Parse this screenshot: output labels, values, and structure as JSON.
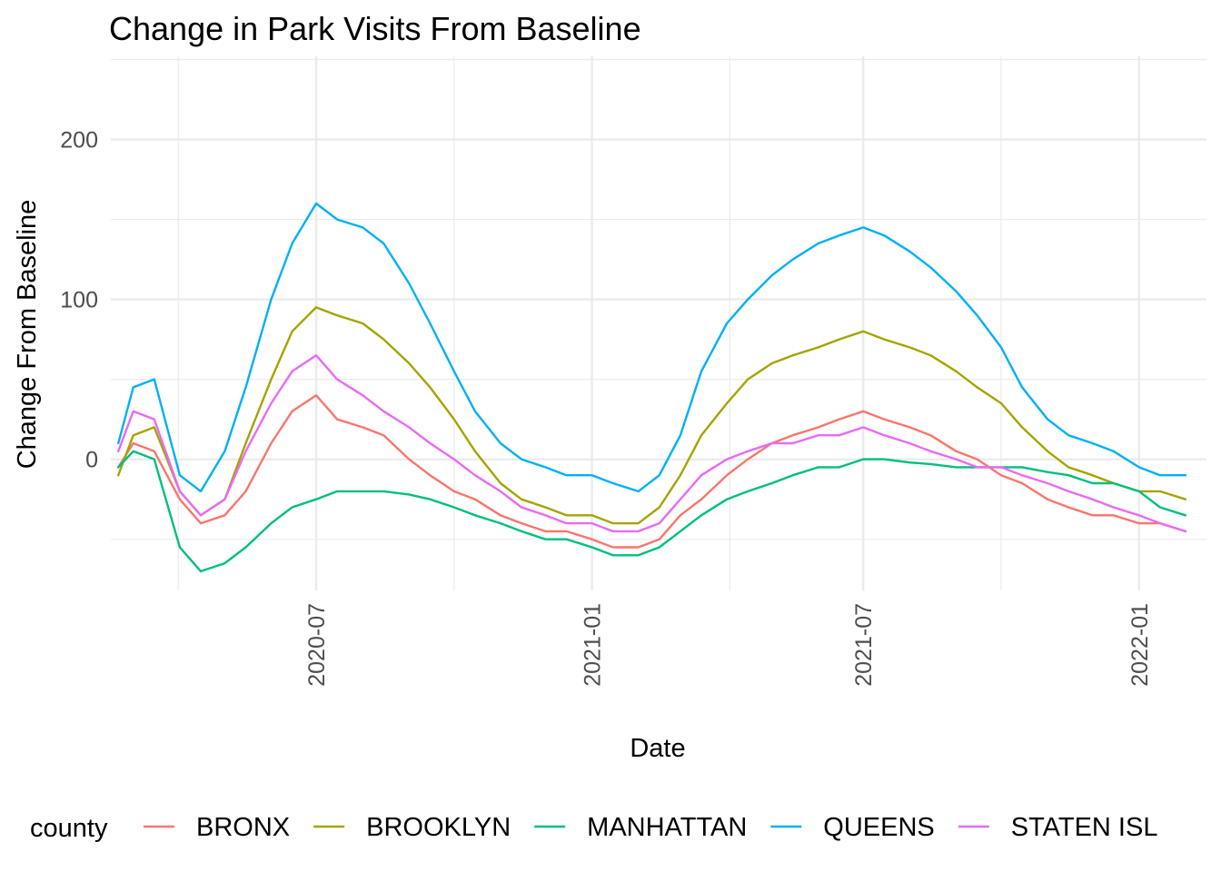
{
  "chart_data": {
    "type": "line",
    "title": "Change in Park Visits From Baseline",
    "xlabel": "Date",
    "ylabel": "Change From Baseline",
    "x_range": [
      "2020-02-15",
      "2022-02-15"
    ],
    "ylim": [
      -82,
      252
    ],
    "y_ticks": [
      0,
      100,
      200
    ],
    "x_ticks": [
      "2020-07-01",
      "2021-01-01",
      "2021-07-01",
      "2022-01-01"
    ],
    "x_tick_labels": [
      "2020-07",
      "2021-01",
      "2021-07",
      "2022-01"
    ],
    "grid": true,
    "legend": {
      "title": "county",
      "position": "bottom"
    },
    "series": [
      {
        "name": "BRONX",
        "color": "#F8766D",
        "x": [
          "2020-02-20",
          "2020-03-01",
          "2020-03-15",
          "2020-04-01",
          "2020-04-15",
          "2020-05-01",
          "2020-05-15",
          "2020-06-01",
          "2020-06-15",
          "2020-07-01",
          "2020-07-15",
          "2020-08-01",
          "2020-08-15",
          "2020-09-01",
          "2020-09-15",
          "2020-10-01",
          "2020-10-15",
          "2020-11-01",
          "2020-11-15",
          "2020-12-01",
          "2020-12-15",
          "2021-01-01",
          "2021-01-15",
          "2021-02-01",
          "2021-02-15",
          "2021-03-01",
          "2021-03-15",
          "2021-04-01",
          "2021-04-15",
          "2021-05-01",
          "2021-05-15",
          "2021-06-01",
          "2021-06-15",
          "2021-07-01",
          "2021-07-15",
          "2021-08-01",
          "2021-08-15",
          "2021-09-01",
          "2021-09-15",
          "2021-10-01",
          "2021-10-15",
          "2021-11-01",
          "2021-11-15",
          "2021-12-01",
          "2021-12-15",
          "2022-01-01",
          "2022-01-15",
          "2022-02-01"
        ],
        "y": [
          -5,
          10,
          5,
          -25,
          -40,
          -35,
          -20,
          10,
          30,
          40,
          25,
          20,
          15,
          0,
          -10,
          -20,
          -25,
          -35,
          -40,
          -45,
          -45,
          -50,
          -55,
          -55,
          -50,
          -35,
          -25,
          -10,
          0,
          10,
          15,
          20,
          25,
          30,
          25,
          20,
          15,
          5,
          0,
          -10,
          -15,
          -25,
          -30,
          -35,
          -35,
          -40,
          -40,
          -45
        ]
      },
      {
        "name": "BROOKLYN",
        "color": "#A3A500",
        "x": [
          "2020-02-20",
          "2020-03-01",
          "2020-03-15",
          "2020-04-01",
          "2020-04-15",
          "2020-05-01",
          "2020-05-15",
          "2020-06-01",
          "2020-06-15",
          "2020-07-01",
          "2020-07-15",
          "2020-08-01",
          "2020-08-15",
          "2020-09-01",
          "2020-09-15",
          "2020-10-01",
          "2020-10-15",
          "2020-11-01",
          "2020-11-15",
          "2020-12-01",
          "2020-12-15",
          "2021-01-01",
          "2021-01-15",
          "2021-02-01",
          "2021-02-15",
          "2021-03-01",
          "2021-03-15",
          "2021-04-01",
          "2021-04-15",
          "2021-05-01",
          "2021-05-15",
          "2021-06-01",
          "2021-06-15",
          "2021-07-01",
          "2021-07-15",
          "2021-08-01",
          "2021-08-15",
          "2021-09-01",
          "2021-09-15",
          "2021-10-01",
          "2021-10-15",
          "2021-11-01",
          "2021-11-15",
          "2021-12-01",
          "2021-12-15",
          "2022-01-01",
          "2022-01-15",
          "2022-02-01"
        ],
        "y": [
          -10,
          15,
          20,
          -20,
          -35,
          -25,
          10,
          50,
          80,
          95,
          90,
          85,
          75,
          60,
          45,
          25,
          5,
          -15,
          -25,
          -30,
          -35,
          -35,
          -40,
          -40,
          -30,
          -10,
          15,
          35,
          50,
          60,
          65,
          70,
          75,
          80,
          75,
          70,
          65,
          55,
          45,
          35,
          20,
          5,
          -5,
          -10,
          -15,
          -20,
          -20,
          -25
        ]
      },
      {
        "name": "MANHATTAN",
        "color": "#00BF7D",
        "x": [
          "2020-02-20",
          "2020-03-01",
          "2020-03-15",
          "2020-04-01",
          "2020-04-15",
          "2020-05-01",
          "2020-05-15",
          "2020-06-01",
          "2020-06-15",
          "2020-07-01",
          "2020-07-15",
          "2020-08-01",
          "2020-08-15",
          "2020-09-01",
          "2020-09-15",
          "2020-10-01",
          "2020-10-15",
          "2020-11-01",
          "2020-11-15",
          "2020-12-01",
          "2020-12-15",
          "2021-01-01",
          "2021-01-15",
          "2021-02-01",
          "2021-02-15",
          "2021-03-01",
          "2021-03-15",
          "2021-04-01",
          "2021-04-15",
          "2021-05-01",
          "2021-05-15",
          "2021-06-01",
          "2021-06-15",
          "2021-07-01",
          "2021-07-15",
          "2021-08-01",
          "2021-08-15",
          "2021-09-01",
          "2021-09-15",
          "2021-10-01",
          "2021-10-15",
          "2021-11-01",
          "2021-11-15",
          "2021-12-01",
          "2021-12-15",
          "2022-01-01",
          "2022-01-15",
          "2022-02-01"
        ],
        "y": [
          -5,
          5,
          0,
          -55,
          -70,
          -65,
          -55,
          -40,
          -30,
          -25,
          -20,
          -20,
          -20,
          -22,
          -25,
          -30,
          -35,
          -40,
          -45,
          -50,
          -50,
          -55,
          -60,
          -60,
          -55,
          -45,
          -35,
          -25,
          -20,
          -15,
          -10,
          -5,
          -5,
          0,
          0,
          -2,
          -3,
          -5,
          -5,
          -5,
          -5,
          -8,
          -10,
          -15,
          -15,
          -20,
          -30,
          -35
        ]
      },
      {
        "name": "QUEENS",
        "color": "#00B0F6",
        "x": [
          "2020-02-20",
          "2020-03-01",
          "2020-03-15",
          "2020-04-01",
          "2020-04-15",
          "2020-05-01",
          "2020-05-15",
          "2020-06-01",
          "2020-06-15",
          "2020-07-01",
          "2020-07-15",
          "2020-08-01",
          "2020-08-15",
          "2020-09-01",
          "2020-09-15",
          "2020-10-01",
          "2020-10-15",
          "2020-11-01",
          "2020-11-15",
          "2020-12-01",
          "2020-12-15",
          "2021-01-01",
          "2021-01-15",
          "2021-02-01",
          "2021-02-15",
          "2021-03-01",
          "2021-03-15",
          "2021-04-01",
          "2021-04-15",
          "2021-05-01",
          "2021-05-15",
          "2021-06-01",
          "2021-06-15",
          "2021-07-01",
          "2021-07-15",
          "2021-08-01",
          "2021-08-15",
          "2021-09-01",
          "2021-09-15",
          "2021-10-01",
          "2021-10-15",
          "2021-11-01",
          "2021-11-15",
          "2021-12-01",
          "2021-12-15",
          "2022-01-01",
          "2022-01-15",
          "2022-02-01"
        ],
        "y": [
          10,
          45,
          50,
          -10,
          -20,
          5,
          45,
          100,
          135,
          160,
          150,
          145,
          135,
          110,
          85,
          55,
          30,
          10,
          0,
          -5,
          -10,
          -10,
          -15,
          -20,
          -10,
          15,
          55,
          85,
          100,
          115,
          125,
          135,
          140,
          145,
          140,
          130,
          120,
          105,
          90,
          70,
          45,
          25,
          15,
          10,
          5,
          -5,
          -10,
          -10
        ]
      },
      {
        "name": "STATEN ISL",
        "color": "#E76BF3",
        "x": [
          "2020-02-20",
          "2020-03-01",
          "2020-03-15",
          "2020-04-01",
          "2020-04-15",
          "2020-05-01",
          "2020-05-15",
          "2020-06-01",
          "2020-06-15",
          "2020-07-01",
          "2020-07-15",
          "2020-08-01",
          "2020-08-15",
          "2020-09-01",
          "2020-09-15",
          "2020-10-01",
          "2020-10-15",
          "2020-11-01",
          "2020-11-15",
          "2020-12-01",
          "2020-12-15",
          "2021-01-01",
          "2021-01-15",
          "2021-02-01",
          "2021-02-15",
          "2021-03-01",
          "2021-03-15",
          "2021-04-01",
          "2021-04-15",
          "2021-05-01",
          "2021-05-15",
          "2021-06-01",
          "2021-06-15",
          "2021-07-01",
          "2021-07-15",
          "2021-08-01",
          "2021-08-15",
          "2021-09-01",
          "2021-09-15",
          "2021-10-01",
          "2021-10-15",
          "2021-11-01",
          "2021-11-15",
          "2021-12-01",
          "2021-12-15",
          "2022-01-01",
          "2022-01-15",
          "2022-02-01"
        ],
        "y": [
          5,
          30,
          25,
          -20,
          -35,
          -25,
          5,
          35,
          55,
          65,
          50,
          40,
          30,
          20,
          10,
          0,
          -10,
          -20,
          -30,
          -35,
          -40,
          -40,
          -45,
          -45,
          -40,
          -25,
          -10,
          0,
          5,
          10,
          10,
          15,
          15,
          20,
          15,
          10,
          5,
          0,
          -5,
          -5,
          -10,
          -15,
          -20,
          -25,
          -30,
          -35,
          -40,
          -45
        ]
      }
    ]
  }
}
